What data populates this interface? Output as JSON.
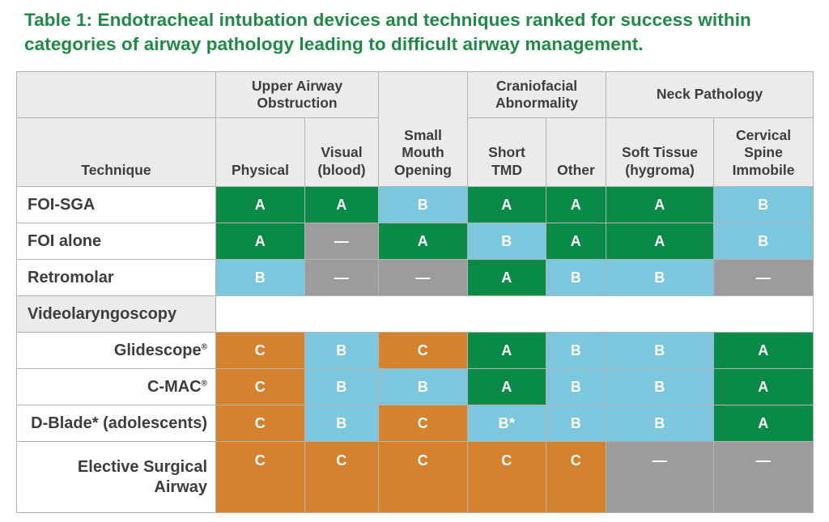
{
  "title": "Table 1: Endotracheal intubation devices and techniques ranked for success within categories of airway pathology leading to difficult airway management.",
  "palette": {
    "title_green": "#1d8b45",
    "green": "#0a8a47",
    "blue": "#7cc7dd",
    "orange": "#d5822f",
    "gray": "#9c9c9c",
    "header_bg": "#ebebeb",
    "border": "#b3b3b3",
    "header_text": "#3d3d3d"
  },
  "table": {
    "corner_label": "Technique",
    "group_headers": [
      {
        "label": "Upper Airway\nObstruction"
      },
      {
        "label": "Craniofacial\nAbnormality"
      },
      {
        "label": "Neck Pathology"
      }
    ],
    "column_headers": [
      {
        "label": "Physical"
      },
      {
        "label": "Visual\n(blood)"
      },
      {
        "label": "Small\nMouth\nOpening"
      },
      {
        "label": "Short\nTMD"
      },
      {
        "label": "Other"
      },
      {
        "label": "Soft Tissue\n(hygroma)"
      },
      {
        "label": "Cervical\nSpine\nImmobile"
      }
    ],
    "rows": [
      {
        "label": "FOI-SGA",
        "align": "left",
        "cells": [
          {
            "text": "A",
            "color": "green"
          },
          {
            "text": "A",
            "color": "green"
          },
          {
            "text": "B",
            "color": "blue"
          },
          {
            "text": "A",
            "color": "green"
          },
          {
            "text": "A",
            "color": "green"
          },
          {
            "text": "A",
            "color": "green"
          },
          {
            "text": "B",
            "color": "blue"
          }
        ]
      },
      {
        "label": "FOI alone",
        "align": "left",
        "cells": [
          {
            "text": "A",
            "color": "green"
          },
          {
            "text": "—",
            "color": "gray"
          },
          {
            "text": "A",
            "color": "green"
          },
          {
            "text": "B",
            "color": "blue"
          },
          {
            "text": "A",
            "color": "green"
          },
          {
            "text": "A",
            "color": "green"
          },
          {
            "text": "B",
            "color": "blue"
          }
        ]
      },
      {
        "label": "Retromolar",
        "align": "left",
        "cells": [
          {
            "text": "B",
            "color": "blue"
          },
          {
            "text": "—",
            "color": "gray"
          },
          {
            "text": "—",
            "color": "gray"
          },
          {
            "text": "A",
            "color": "green"
          },
          {
            "text": "B",
            "color": "blue"
          },
          {
            "text": "B",
            "color": "blue"
          },
          {
            "text": "—",
            "color": "gray"
          }
        ]
      },
      {
        "label": "Videolaryngoscopy",
        "align": "left",
        "section_header": true,
        "cells": []
      },
      {
        "label": "Glidescope",
        "sup": "®",
        "align": "right",
        "cells": [
          {
            "text": "C",
            "color": "orange"
          },
          {
            "text": "B",
            "color": "blue"
          },
          {
            "text": "C",
            "color": "orange"
          },
          {
            "text": "A",
            "color": "green"
          },
          {
            "text": "B",
            "color": "blue"
          },
          {
            "text": "B",
            "color": "blue"
          },
          {
            "text": "A",
            "color": "green"
          }
        ]
      },
      {
        "label": "C-MAC",
        "sup": "®",
        "align": "right",
        "cells": [
          {
            "text": "C",
            "color": "orange"
          },
          {
            "text": "B",
            "color": "blue"
          },
          {
            "text": "B",
            "color": "blue"
          },
          {
            "text": "A",
            "color": "green"
          },
          {
            "text": "B",
            "color": "blue"
          },
          {
            "text": "B",
            "color": "blue"
          },
          {
            "text": "A",
            "color": "green"
          }
        ]
      },
      {
        "label": "D-Blade* (adolescents)",
        "align": "right",
        "cells": [
          {
            "text": "C",
            "color": "orange"
          },
          {
            "text": "B",
            "color": "blue"
          },
          {
            "text": "C",
            "color": "orange"
          },
          {
            "text": "B*",
            "color": "blue"
          },
          {
            "text": "B",
            "color": "blue"
          },
          {
            "text": "B",
            "color": "blue"
          },
          {
            "text": "A",
            "color": "green"
          }
        ]
      },
      {
        "label": "Elective Surgical Airway",
        "align": "right",
        "tall": true,
        "cells": [
          {
            "text": "C",
            "color": "orange"
          },
          {
            "text": "C",
            "color": "orange"
          },
          {
            "text": "C",
            "color": "orange"
          },
          {
            "text": "C",
            "color": "orange"
          },
          {
            "text": "C",
            "color": "orange"
          },
          {
            "text": "—",
            "color": "gray"
          },
          {
            "text": "—",
            "color": "gray"
          }
        ]
      }
    ]
  }
}
